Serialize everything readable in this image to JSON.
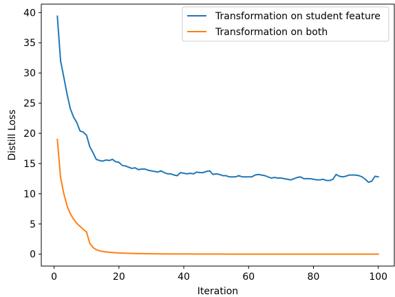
{
  "chart_data": {
    "type": "line",
    "xlabel": "Iteration",
    "ylabel": "Distill Loss",
    "xlim": [
      -3.95,
      104.95
    ],
    "ylim": [
      -1.97,
      41.4
    ],
    "x_ticks": [
      0,
      20,
      40,
      60,
      80,
      100
    ],
    "y_ticks": [
      0,
      5,
      10,
      15,
      20,
      25,
      30,
      35,
      40
    ],
    "legend": {
      "placement": "top-right"
    },
    "grid": false,
    "series": [
      {
        "name": "Transformation on student feature",
        "color": "#1f77b4",
        "x": [
          1,
          2,
          3,
          4,
          5,
          6,
          7,
          8,
          9,
          10,
          11,
          12,
          13,
          14,
          15,
          16,
          17,
          18,
          19,
          20,
          21,
          22,
          23,
          24,
          25,
          26,
          27,
          28,
          29,
          30,
          31,
          32,
          33,
          34,
          35,
          36,
          37,
          38,
          39,
          40,
          41,
          42,
          43,
          44,
          45,
          46,
          47,
          48,
          49,
          50,
          51,
          52,
          53,
          54,
          55,
          56,
          57,
          58,
          59,
          60,
          61,
          62,
          63,
          64,
          65,
          66,
          67,
          68,
          69,
          70,
          71,
          72,
          73,
          74,
          75,
          76,
          77,
          78,
          79,
          80,
          81,
          82,
          83,
          84,
          85,
          86,
          87,
          88,
          89,
          90,
          91,
          92,
          93,
          94,
          95,
          96,
          97,
          98,
          99,
          100
        ],
        "values": [
          39.4,
          32.0,
          29.3,
          26.5,
          24.1,
          22.7,
          21.8,
          20.4,
          20.2,
          19.7,
          17.8,
          16.8,
          15.7,
          15.5,
          15.4,
          15.6,
          15.5,
          15.7,
          15.3,
          15.2,
          14.7,
          14.6,
          14.4,
          14.2,
          14.3,
          14.0,
          14.1,
          14.1,
          13.9,
          13.8,
          13.7,
          13.6,
          13.8,
          13.5,
          13.3,
          13.3,
          13.1,
          13.0,
          13.5,
          13.4,
          13.3,
          13.4,
          13.3,
          13.6,
          13.5,
          13.5,
          13.7,
          13.8,
          13.2,
          13.3,
          13.2,
          13.0,
          13.0,
          12.8,
          12.8,
          12.8,
          13.0,
          12.8,
          12.8,
          12.8,
          12.8,
          13.1,
          13.2,
          13.1,
          13.0,
          12.8,
          12.6,
          12.7,
          12.6,
          12.6,
          12.5,
          12.4,
          12.3,
          12.5,
          12.7,
          12.8,
          12.5,
          12.5,
          12.5,
          12.4,
          12.3,
          12.3,
          12.4,
          12.2,
          12.2,
          12.4,
          13.2,
          12.9,
          12.8,
          12.9,
          13.1,
          13.1,
          13.1,
          13.0,
          12.8,
          12.4,
          11.9,
          12.1,
          12.9,
          12.8
        ]
      },
      {
        "name": "Transformation on both",
        "color": "#ff7f0e",
        "x": [
          1,
          2,
          3,
          4,
          5,
          6,
          7,
          8,
          9,
          10,
          11,
          12,
          13,
          14,
          15,
          16,
          17,
          18,
          19,
          20,
          21,
          22,
          23,
          24,
          25,
          26,
          27,
          28,
          29,
          30,
          31,
          32,
          33,
          34,
          35,
          36,
          37,
          38,
          39,
          40,
          41,
          42,
          43,
          44,
          45,
          46,
          47,
          48,
          49,
          50,
          51,
          52,
          53,
          54,
          55,
          56,
          57,
          58,
          59,
          60,
          61,
          62,
          63,
          64,
          65,
          66,
          67,
          68,
          69,
          70,
          71,
          72,
          73,
          74,
          75,
          76,
          77,
          78,
          79,
          80,
          81,
          82,
          83,
          84,
          85,
          86,
          87,
          88,
          89,
          90,
          91,
          92,
          93,
          94,
          95,
          96,
          97,
          98,
          99,
          100
        ],
        "values": [
          19.0,
          12.7,
          10.0,
          8.0,
          6.7,
          5.8,
          5.1,
          4.6,
          4.1,
          3.7,
          1.8,
          1.1,
          0.75,
          0.55,
          0.45,
          0.38,
          0.32,
          0.27,
          0.23,
          0.2,
          0.18,
          0.16,
          0.14,
          0.12,
          0.11,
          0.1,
          0.09,
          0.08,
          0.075,
          0.07,
          0.06,
          0.05,
          0.05,
          0.05,
          0.04,
          0.04,
          0.04,
          0.03,
          0.03,
          0.03,
          0.03,
          0.03,
          0.02,
          0.02,
          0.02,
          0.02,
          0.02,
          0.02,
          0.02,
          0.02,
          0.02,
          0.02,
          0.01,
          0.01,
          0.01,
          0.01,
          0.01,
          0.01,
          0.01,
          0.01,
          0.01,
          0.01,
          0.01,
          0.01,
          0.01,
          0.01,
          0.01,
          0.01,
          0.01,
          0.01,
          0.01,
          0.01,
          0.01,
          0.01,
          0.01,
          0.01,
          0.01,
          0.01,
          0.01,
          0.01,
          0.01,
          0.01,
          0.01,
          0.01,
          0.01,
          0.01,
          0.01,
          0.01,
          0.01,
          0.01,
          0.01,
          0.01,
          0.01,
          0.01,
          0.01,
          0.01,
          0.01,
          0.01,
          0.01,
          0.01
        ]
      }
    ]
  }
}
